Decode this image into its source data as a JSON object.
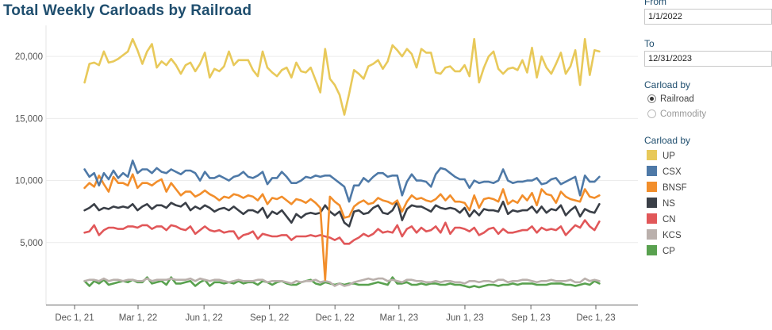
{
  "chart_data": {
    "type": "line",
    "title": "Total Weekly Carloads by Railroad",
    "xlabel": "",
    "ylabel": "",
    "ylim": [
      0,
      22500
    ],
    "yticks": [
      5000,
      10000,
      15000,
      20000
    ],
    "ytick_labels": [
      "5,000",
      "10,000",
      "15,000",
      "20,000"
    ],
    "xticks": [
      {
        "label": "Dec 1, 21",
        "week": 0
      },
      {
        "label": "Mar 1, 22",
        "week": 12.7
      },
      {
        "label": "Jun 1, 22",
        "week": 25.9
      },
      {
        "label": "Sep 1, 22",
        "week": 39.0
      },
      {
        "label": "Dec 1, 22",
        "week": 52.1
      },
      {
        "label": "Mar 1, 23",
        "week": 64.9
      },
      {
        "label": "Jun 1, 23",
        "week": 78.1
      },
      {
        "label": "Sep 1, 23",
        "week": 91.3
      },
      {
        "label": "Dec 1, 23",
        "week": 104.3
      }
    ],
    "x": "weeks since Dec 1, 2021 (weekly, Jan 2022 - Dec 2023)",
    "grid": "horizontal",
    "series": [
      {
        "name": "UP",
        "color": "#e8c95a",
        "values": [
          17900,
          19400,
          19500,
          19300,
          20400,
          19500,
          19600,
          19800,
          20100,
          20400,
          21400,
          20500,
          19400,
          20400,
          21000,
          19100,
          19600,
          19300,
          19800,
          19300,
          18600,
          19300,
          19500,
          18800,
          19400,
          20300,
          18300,
          19000,
          18800,
          19200,
          20400,
          19300,
          19700,
          19700,
          19700,
          18900,
          18400,
          20400,
          19100,
          18700,
          18400,
          18900,
          19100,
          18300,
          19500,
          18800,
          18700,
          19100,
          18100,
          17100,
          20600,
          18200,
          17700,
          16900,
          15300,
          17000,
          18900,
          18600,
          18200,
          19200,
          19400,
          19700,
          19000,
          19600,
          20900,
          20500,
          20000,
          20600,
          20200,
          19100,
          20600,
          20300,
          20300,
          18700,
          18600,
          19100,
          19200,
          18800,
          18800,
          19300,
          18400,
          21400,
          17900,
          19100,
          20000,
          20400,
          19000,
          18600,
          19000,
          19100,
          18900,
          19700,
          18700,
          20700,
          18300,
          20000,
          19100,
          18600,
          19400,
          20300,
          18600,
          19200,
          20500,
          17700,
          21400,
          18500,
          20500,
          20400
        ]
      },
      {
        "name": "CSX",
        "color": "#4e79a7",
        "values": [
          10900,
          10300,
          10600,
          9600,
          10600,
          10100,
          10800,
          10200,
          10600,
          10300,
          11600,
          10600,
          10900,
          10900,
          10600,
          11000,
          10700,
          10600,
          10900,
          10700,
          10500,
          10800,
          10800,
          10600,
          10000,
          10700,
          10200,
          10200,
          10400,
          10200,
          10000,
          10300,
          10400,
          10700,
          10300,
          10200,
          10400,
          10700,
          9700,
          10200,
          10200,
          10700,
          10300,
          9800,
          9800,
          10000,
          10300,
          10200,
          10400,
          10300,
          10400,
          10400,
          10100,
          9800,
          9500,
          8300,
          9600,
          9600,
          10200,
          9900,
          10300,
          10600,
          10600,
          10300,
          10400,
          10400,
          8800,
          9900,
          10500,
          10000,
          10000,
          9900,
          9500,
          10500,
          11000,
          10900,
          10600,
          10300,
          10100,
          10100,
          9400,
          10000,
          9800,
          9900,
          9900,
          9800,
          10000,
          10900,
          10000,
          9800,
          9900,
          9900,
          10000,
          10000,
          10200,
          9700,
          9800,
          10100,
          10200,
          9700,
          9900,
          10100,
          10300,
          8800,
          10400,
          9900,
          9900,
          10300
        ]
      },
      {
        "name": "BNSF",
        "color": "#f28e2b",
        "values": [
          9400,
          9800,
          9500,
          10400,
          9700,
          9100,
          10300,
          9800,
          9800,
          9600,
          10500,
          9400,
          9800,
          9800,
          9600,
          9900,
          10100,
          9100,
          9800,
          9300,
          8800,
          9100,
          9100,
          8700,
          8900,
          9200,
          8900,
          8700,
          8400,
          8700,
          8600,
          8900,
          8800,
          8600,
          8800,
          8700,
          8400,
          8900,
          8100,
          8600,
          8500,
          8700,
          8400,
          8100,
          8500,
          8400,
          8200,
          8500,
          8200,
          7800,
          2000,
          8700,
          8300,
          8000,
          7000,
          7100,
          7900,
          8200,
          8400,
          8100,
          8200,
          8600,
          8400,
          8300,
          8100,
          8400,
          7500,
          8300,
          8800,
          8500,
          8600,
          8400,
          8300,
          8500,
          8900,
          8400,
          8800,
          8300,
          8300,
          8200,
          7600,
          8800,
          7800,
          8500,
          8600,
          8500,
          8300,
          9300,
          8100,
          8400,
          8200,
          8800,
          8400,
          9000,
          8000,
          9300,
          8900,
          8800,
          8200,
          9100,
          8700,
          8500,
          8400,
          8300,
          9300,
          8700,
          8600,
          8800
        ]
      },
      {
        "name": "NS",
        "color": "#3a3f47",
        "values": [
          7600,
          7800,
          8100,
          7600,
          7800,
          7700,
          7900,
          7800,
          7900,
          7800,
          8100,
          7600,
          7900,
          8100,
          7700,
          8000,
          8000,
          7800,
          8200,
          8000,
          7900,
          8200,
          7600,
          7900,
          7700,
          8000,
          7800,
          7500,
          7700,
          7800,
          7600,
          7900,
          7600,
          7300,
          7600,
          7600,
          7400,
          7800,
          7000,
          7500,
          7300,
          7600,
          7100,
          6600,
          7300,
          7000,
          7300,
          7400,
          7300,
          7400,
          8000,
          7500,
          7200,
          7500,
          6600,
          6300,
          7500,
          7600,
          7300,
          7400,
          7800,
          8000,
          7400,
          7300,
          7600,
          8300,
          6800,
          7700,
          8000,
          7900,
          7900,
          7700,
          7500,
          8000,
          7800,
          7700,
          7800,
          7700,
          7400,
          7800,
          7100,
          7600,
          7200,
          7700,
          7600,
          7600,
          7500,
          8300,
          7300,
          7600,
          7500,
          7600,
          7600,
          7900,
          7400,
          7900,
          7400,
          7700,
          7600,
          8000,
          7200,
          7600,
          7900,
          7100,
          7700,
          7500,
          7400,
          8100
        ]
      },
      {
        "name": "CN",
        "color": "#e15759",
        "values": [
          5800,
          5900,
          6400,
          5600,
          6000,
          6200,
          6200,
          6100,
          6100,
          6300,
          6300,
          6200,
          6400,
          6400,
          6100,
          6300,
          6300,
          6000,
          6400,
          6300,
          6100,
          6000,
          6300,
          5700,
          6000,
          6300,
          6000,
          5900,
          6000,
          5800,
          5900,
          5900,
          5300,
          5600,
          5700,
          5900,
          5300,
          5700,
          5600,
          5500,
          5500,
          5600,
          5600,
          5200,
          5500,
          5500,
          5500,
          5600,
          5500,
          5600,
          5500,
          5400,
          5200,
          5400,
          4900,
          4900,
          5200,
          5400,
          5700,
          5500,
          5700,
          6100,
          5800,
          5900,
          5800,
          6400,
          5500,
          6100,
          6300,
          5800,
          6200,
          5900,
          6000,
          6300,
          5800,
          6600,
          5700,
          6200,
          6200,
          6100,
          5900,
          6200,
          5600,
          5800,
          6100,
          6200,
          5700,
          6100,
          5800,
          5800,
          5900,
          6000,
          6000,
          6300,
          5800,
          6200,
          6000,
          6100,
          6000,
          6300,
          5600,
          6000,
          6400,
          6200,
          6800,
          6300,
          6000,
          6700
        ]
      },
      {
        "name": "KCS",
        "color": "#bab0ac",
        "values": [
          1900,
          2000,
          2000,
          1900,
          2100,
          1900,
          2000,
          2000,
          1900,
          2000,
          2000,
          1900,
          1900,
          2100,
          1900,
          2000,
          2000,
          2000,
          2100,
          2000,
          2000,
          2000,
          2100,
          1900,
          2100,
          2000,
          1900,
          2000,
          2000,
          1900,
          1800,
          1900,
          2000,
          1900,
          1900,
          1900,
          2000,
          2000,
          1800,
          1900,
          1900,
          1900,
          1800,
          1700,
          1900,
          1800,
          1900,
          1900,
          2000,
          1800,
          1900,
          1800,
          1500,
          1700,
          1500,
          1600,
          1800,
          1900,
          2000,
          2100,
          2000,
          2100,
          2100,
          1900,
          2000,
          1900,
          1800,
          2000,
          2000,
          1900,
          1900,
          1800,
          1800,
          1900,
          1800,
          1900,
          1900,
          1800,
          1800,
          1700,
          1900,
          1900,
          1800,
          1900,
          1900,
          1800,
          2000,
          2000,
          1800,
          1900,
          1900,
          2000,
          2000,
          1900,
          1800,
          1900,
          1900,
          2000,
          1900,
          1900,
          1900,
          2000,
          1800,
          1800,
          2100,
          1900,
          2000,
          1900
        ]
      },
      {
        "name": "CP",
        "color": "#59a14f",
        "values": [
          1900,
          1500,
          1900,
          1700,
          2000,
          1600,
          1700,
          1800,
          1900,
          1800,
          2000,
          1800,
          1800,
          2200,
          1700,
          1800,
          1900,
          1600,
          2200,
          1700,
          1700,
          1800,
          1900,
          1500,
          1800,
          2000,
          1500,
          1800,
          1800,
          1700,
          1800,
          1700,
          1900,
          1700,
          1800,
          1800,
          1600,
          1900,
          1800,
          1600,
          1800,
          1900,
          1700,
          1600,
          1600,
          1800,
          1900,
          2000,
          1700,
          1600,
          1800,
          1700,
          1600,
          1700,
          1600,
          1700,
          1700,
          1600,
          1600,
          1600,
          1700,
          1800,
          1700,
          1600,
          2200,
          1700,
          1700,
          1800,
          1600,
          1600,
          1700,
          1600,
          1700,
          1700,
          1600,
          1600,
          1700,
          1600,
          1600,
          1500,
          1400,
          1500,
          1400,
          1500,
          1600,
          1600,
          1500,
          1600,
          1600,
          1700,
          1600,
          1700,
          1700,
          1700,
          1600,
          1600,
          1600,
          1700,
          1700,
          1700,
          1600,
          1600,
          1500,
          1600,
          1700,
          1600,
          1900,
          1700
        ]
      }
    ]
  },
  "filters": {
    "from_label": "From",
    "from_value": "1/1/2022",
    "to_label": "To",
    "to_value": "12/31/2023",
    "carload_by_label": "Carload by",
    "options": [
      "Railroad",
      "Commodity"
    ],
    "selected": "Railroad"
  },
  "legend": {
    "title": "Carload by",
    "items": [
      {
        "name": "UP",
        "color": "#e8c95a"
      },
      {
        "name": "CSX",
        "color": "#4e79a7"
      },
      {
        "name": "BNSF",
        "color": "#f28e2b"
      },
      {
        "name": "NS",
        "color": "#3a3f47"
      },
      {
        "name": "CN",
        "color": "#e15759"
      },
      {
        "name": "KCS",
        "color": "#bab0ac"
      },
      {
        "name": "CP",
        "color": "#59a14f"
      }
    ]
  }
}
